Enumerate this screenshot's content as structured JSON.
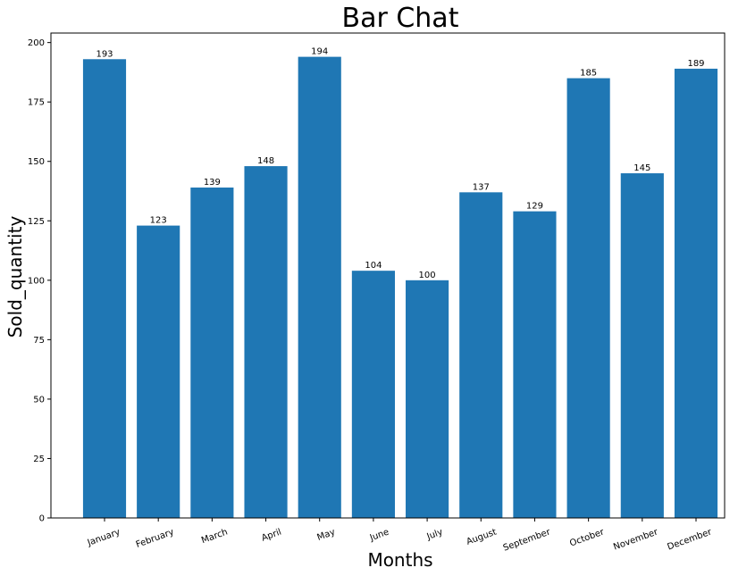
{
  "chart_data": {
    "type": "bar",
    "title": "Bar Chat",
    "xlabel": "Months",
    "ylabel": "Sold_quantity",
    "categories": [
      "January",
      "February",
      "March",
      "April",
      "May",
      "June",
      "July",
      "August",
      "September",
      "October",
      "November",
      "December"
    ],
    "values": [
      193,
      123,
      139,
      148,
      194,
      104,
      100,
      137,
      129,
      185,
      145,
      189
    ],
    "ylim": [
      0,
      204
    ],
    "yticks": [
      0,
      25,
      50,
      75,
      100,
      125,
      150,
      175,
      200
    ],
    "grid": false,
    "bar_color": "#1f77b4",
    "data_labels": true
  }
}
